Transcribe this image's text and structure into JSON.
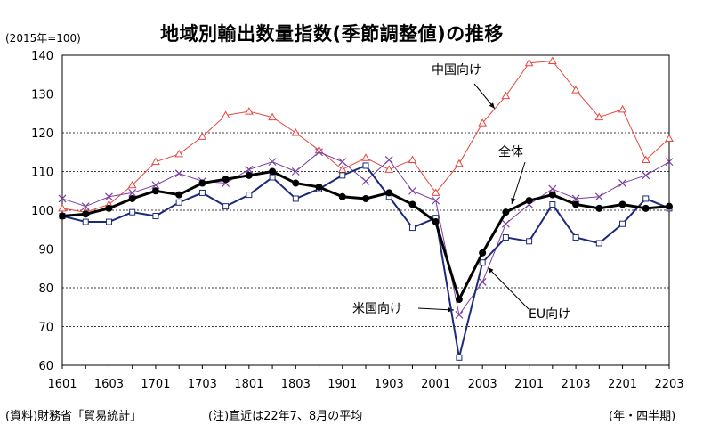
{
  "chart_data": {
    "type": "line",
    "title": "地域別輸出数量指数(季節調整値)の推移",
    "unit_label": "(2015年=100)",
    "xunit": "(年・四半期)",
    "source": "(資料)財務省「貿易統計」",
    "note": "(注)直近は22年7、8月の平均",
    "ylim": [
      60,
      140
    ],
    "yticks": [
      60,
      70,
      80,
      90,
      100,
      110,
      120,
      130,
      140
    ],
    "x_ticks": [
      "1601",
      "1603",
      "1701",
      "1703",
      "1801",
      "1803",
      "1901",
      "1903",
      "2001",
      "2003",
      "2101",
      "2103",
      "2201",
      "2203"
    ],
    "x": [
      "1601",
      "1602",
      "1603",
      "1604",
      "1701",
      "1702",
      "1703",
      "1704",
      "1801",
      "1802",
      "1803",
      "1804",
      "1901",
      "1902",
      "1903",
      "1904",
      "2001",
      "2002",
      "2003",
      "2004",
      "2101",
      "2102",
      "2103",
      "2104",
      "2201",
      "2202",
      "2203"
    ],
    "grid": true,
    "series": [
      {
        "name": "中国向け",
        "color": "#e8453c",
        "marker": "triangle",
        "values": [
          100.5,
          99.5,
          101.5,
          106.5,
          112.5,
          114.5,
          119.0,
          124.5,
          125.5,
          124.0,
          120.0,
          115.5,
          110.5,
          113.5,
          110.5,
          113.0,
          104.5,
          112.0,
          122.5,
          129.5,
          138.0,
          138.5,
          131.0,
          124.0,
          126.0,
          113.0,
          118.5
        ]
      },
      {
        "name": "EU向け",
        "color": "#7b3fa0",
        "marker": "x",
        "values": [
          103.0,
          101.0,
          103.5,
          104.5,
          106.5,
          109.5,
          107.5,
          107.0,
          110.5,
          112.5,
          110.0,
          115.0,
          112.5,
          107.5,
          113.0,
          105.0,
          102.5,
          73.0,
          81.5,
          96.5,
          101.5,
          105.5,
          103.0,
          103.5,
          107.0,
          109.0,
          112.5
        ]
      },
      {
        "name": "米国向け",
        "color": "#1c2a7a",
        "marker": "square",
        "values": [
          98.5,
          97.0,
          97.0,
          99.5,
          98.5,
          102.0,
          104.5,
          101.0,
          104.0,
          108.5,
          103.0,
          105.5,
          109.0,
          111.5,
          103.5,
          95.5,
          98.0,
          62.0,
          86.5,
          93.0,
          92.0,
          101.5,
          93.0,
          91.5,
          96.5,
          103.0,
          100.5
        ]
      },
      {
        "name": "全体",
        "color": "#000000",
        "marker": "circle",
        "values": [
          98.5,
          99.0,
          100.5,
          103.0,
          105.0,
          104.0,
          107.0,
          108.0,
          109.0,
          110.0,
          107.0,
          106.0,
          103.5,
          103.0,
          104.5,
          101.5,
          97.0,
          77.0,
          89.0,
          99.5,
          102.5,
          104.0,
          101.5,
          100.5,
          101.5,
          100.5,
          101.0
        ]
      }
    ],
    "annotations": [
      {
        "text": "中国向け",
        "series": "中国向け"
      },
      {
        "text": "全体",
        "series": "全体"
      },
      {
        "text": "米国向け",
        "series": "米国向け"
      },
      {
        "text": "EU向け",
        "series": "EU向け"
      }
    ]
  }
}
